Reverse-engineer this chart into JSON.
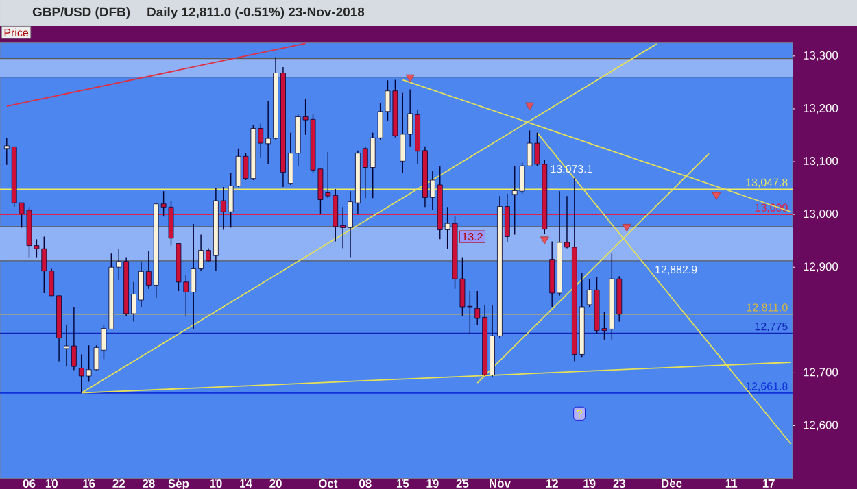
{
  "chart_data": {
    "type": "candlestick",
    "title": "GBP/USD (DFB)",
    "subtitle": "Daily   12,811.0 (-0.51%)   23-Nov-2018",
    "categories": [
      null,
      null,
      null,
      "06",
      null,
      null,
      "10",
      null,
      null,
      null,
      null,
      "16",
      null,
      null,
      null,
      "22",
      null,
      null,
      null,
      "28",
      null,
      null,
      null,
      "Sep",
      null,
      null,
      null,
      null,
      "10",
      null,
      null,
      null,
      "14",
      null,
      null,
      null,
      "20",
      null,
      null,
      null,
      null,
      null,
      null,
      "Oct",
      null,
      null,
      null,
      null,
      "08",
      null,
      null,
      null,
      null,
      "15",
      null,
      null,
      null,
      "19",
      null,
      null,
      null,
      "25",
      null,
      null,
      null,
      null,
      "Nov",
      null,
      null,
      null,
      null,
      null,
      null,
      "12",
      null,
      null,
      null,
      null,
      "19",
      null,
      null,
      null,
      "23",
      null,
      null,
      null,
      null,
      null,
      null,
      "Dec",
      null,
      null,
      null,
      null,
      null,
      null,
      null,
      "11",
      null,
      null,
      null,
      null,
      "17",
      null,
      null,
      null
    ],
    "colors": [
      "#fbf3d8",
      "#cc1038",
      "#cc1038",
      "#cc1038",
      "#cc1038",
      "#cc1038",
      "#cc1038",
      "#cc1038",
      "#fbf3d8",
      "#cc1038",
      "#cc1038",
      "#fbf3d8",
      "#fbf3d8",
      "#fbf3d8",
      "#fbf3d8",
      "#fbf3d8",
      "#cc1038",
      "#fbf3d8",
      "#fbf3d8",
      "#cc1038",
      "#fbf3d8",
      "#cc1038",
      "#cc1038",
      "#cc1038",
      "#cc1038",
      "#fbf3d8",
      "#fbf3d8",
      "#cc1038",
      "#fbf3d8",
      "#cc1038",
      "#fbf3d8",
      "#fbf3d8",
      "#cc1038",
      "#fbf3d8",
      "#cc1038",
      "#fbf3d8",
      "#fbf3d8",
      "#cc1038",
      "#fbf3d8",
      "#fbf3d8",
      "#cc1038",
      "#cc1038",
      "#cc1038",
      "#cc1038",
      "#cc1038",
      "#cc1038",
      "#fbf3d8",
      "#fbf3d8",
      "#cc1038",
      "#fbf3d8",
      "#fbf3d8",
      "#fbf3d8",
      "#cc1038",
      "#fbf3d8",
      "#fbf3d8",
      "#cc1038",
      "#cc1038",
      "#fbf3d8",
      "#cc1038",
      "#fbf3d8",
      "#cc1038",
      "#cc1038",
      "#cc1038",
      "#cc1038",
      "#cc1038",
      "#fbf3d8",
      "#fbf3d8",
      "#cc1038",
      "#fbf3d8",
      "#fbf3d8",
      "#fbf3d8",
      "#cc1038",
      "#cc1038",
      "#cc1038",
      "#fbf3d8",
      "#cc1038",
      "#cc1038",
      "#fbf3d8",
      "#fbf3d8",
      "#cc1038",
      "#cc1038",
      "#fbf3d8",
      "#cc1038",
      null,
      null,
      null,
      null,
      null,
      null,
      null,
      null,
      null,
      null,
      null,
      null,
      null,
      null,
      null,
      null,
      null,
      null,
      null,
      null,
      null,
      null,
      null
    ],
    "ohlc": [
      [
        13125,
        13144,
        13094,
        13130
      ],
      [
        13128,
        13129,
        13015,
        13022
      ],
      [
        13022,
        13022,
        12975,
        13001
      ],
      [
        13008,
        13014,
        12919,
        12941
      ],
      [
        12941,
        12953,
        12919,
        12935
      ],
      [
        12935,
        12958,
        12851,
        12893
      ],
      [
        12893,
        12897,
        12846,
        12846
      ],
      [
        12846,
        12846,
        12722,
        12766
      ],
      [
        12746,
        12791,
        12713,
        12751
      ],
      [
        12751,
        12825,
        12705,
        12712
      ],
      [
        12709,
        12735,
        12662,
        12694
      ],
      [
        12694,
        12752,
        12683,
        12706
      ],
      [
        12706,
        12752,
        12705,
        12748
      ],
      [
        12743,
        12791,
        12726,
        12784
      ],
      [
        12783,
        12926,
        12783,
        12900
      ],
      [
        12900,
        12935,
        12876,
        12911
      ],
      [
        12911,
        12919,
        12808,
        12812
      ],
      [
        12812,
        12872,
        12797,
        12849
      ],
      [
        12838,
        12911,
        12825,
        12892
      ],
      [
        12892,
        12930,
        12859,
        12866
      ],
      [
        12866,
        13022,
        12842,
        13020
      ],
      [
        13020,
        13044,
        12996,
        13014
      ],
      [
        13014,
        13026,
        12941,
        12955
      ],
      [
        12945,
        12945,
        12855,
        12872
      ],
      [
        12872,
        12885,
        12808,
        12853
      ],
      [
        12853,
        12982,
        12783,
        12897
      ],
      [
        12897,
        12962,
        12893,
        12932
      ],
      [
        12932,
        12936,
        12911,
        12912
      ],
      [
        12922,
        13050,
        12893,
        13026
      ],
      [
        13026,
        13052,
        12971,
        13005
      ],
      [
        13005,
        13078,
        12975,
        13054
      ],
      [
        13054,
        13125,
        13052,
        13110
      ],
      [
        13110,
        13116,
        13065,
        13068
      ],
      [
        13068,
        13170,
        13065,
        13163
      ],
      [
        13163,
        13172,
        13108,
        13135
      ],
      [
        13134,
        13215,
        13095,
        13144
      ],
      [
        13144,
        13298,
        13142,
        13268
      ],
      [
        13268,
        13279,
        13052,
        13080
      ],
      [
        13059,
        13155,
        13056,
        13116
      ],
      [
        13116,
        13189,
        13091,
        13185
      ],
      [
        13185,
        13218,
        13151,
        13179
      ],
      [
        13180,
        13189,
        13078,
        13084
      ],
      [
        13086,
        13086,
        13001,
        13028
      ],
      [
        13041,
        13118,
        13031,
        13035
      ],
      [
        13036,
        13048,
        12949,
        12977
      ],
      [
        12979,
        13014,
        12936,
        12975
      ],
      [
        12975,
        13044,
        12919,
        13024
      ],
      [
        13022,
        13121,
        13001,
        13116
      ],
      [
        13125,
        13129,
        13031,
        13089
      ],
      [
        13089,
        13155,
        13031,
        13145
      ],
      [
        13145,
        13211,
        13142,
        13195
      ],
      [
        13195,
        13254,
        13177,
        13234
      ],
      [
        13234,
        13255,
        13146,
        13149
      ],
      [
        13101,
        13230,
        13078,
        13152
      ],
      [
        13152,
        13237,
        13129,
        13191
      ],
      [
        13189,
        13198,
        13095,
        13120
      ],
      [
        13121,
        13129,
        13014,
        13032
      ],
      [
        13032,
        13082,
        13009,
        13065
      ],
      [
        13056,
        13091,
        12953,
        12971
      ],
      [
        12971,
        13014,
        12935,
        12983
      ],
      [
        12983,
        12996,
        12859,
        12878
      ],
      [
        12878,
        12919,
        12808,
        12825
      ],
      [
        12826,
        12855,
        12774,
        12825
      ],
      [
        12822,
        12855,
        12791,
        12803
      ],
      [
        12805,
        12829,
        12694,
        12696
      ],
      [
        12696,
        12829,
        12692,
        12770
      ],
      [
        12770,
        13035,
        12766,
        13015
      ],
      [
        13015,
        13039,
        12947,
        12958
      ],
      [
        13038,
        13091,
        12962,
        13045
      ],
      [
        13044,
        13098,
        13039,
        13092
      ],
      [
        13092,
        13159,
        13091,
        13135
      ],
      [
        13135,
        13155,
        13091,
        13095
      ],
      [
        13095,
        13104,
        12964,
        12972
      ],
      [
        12915,
        12949,
        12825,
        12851
      ],
      [
        12851,
        13044,
        12846,
        12947
      ],
      [
        12947,
        13035,
        12936,
        12938
      ],
      [
        12938,
        13069,
        12722,
        12735
      ],
      [
        12735,
        12889,
        12730,
        12825
      ],
      [
        12829,
        12878,
        12825,
        12857
      ],
      [
        12857,
        12881,
        12774,
        12780
      ],
      [
        12784,
        12816,
        12763,
        12780
      ],
      [
        12783,
        12926,
        12763,
        12878
      ],
      [
        12878,
        12883,
        12797,
        12811
      ],
      null,
      null,
      null,
      null,
      null,
      null,
      null,
      null,
      null,
      null,
      null,
      null,
      null,
      null,
      null,
      null,
      null,
      null,
      null,
      null,
      null,
      null,
      null
    ],
    "series": [
      {
        "type": "line",
        "color": "#e6e05a",
        "values": [
          null,
          null,
          null,
          null,
          null,
          null,
          null,
          null,
          null,
          null,
          12662,
          null,
          null,
          null,
          null,
          null,
          null,
          null,
          null,
          null,
          null,
          null,
          null,
          null,
          null,
          null,
          null,
          null,
          null,
          null,
          null,
          null,
          null,
          null,
          null,
          null,
          null,
          null,
          null,
          null,
          null,
          null,
          null,
          null,
          null,
          null,
          null,
          null,
          null,
          null,
          null,
          null,
          null,
          null,
          null,
          null,
          null,
          null,
          null,
          null,
          null,
          null,
          null,
          null,
          null,
          null,
          null,
          null,
          null,
          null,
          null,
          null,
          null,
          null,
          null,
          null,
          null,
          null,
          null,
          null,
          null,
          null,
          null,
          null,
          null,
          null,
          null,
          null,
          null,
          null,
          null,
          null,
          null,
          null,
          null,
          null,
          null,
          null,
          null,
          null,
          null,
          null,
          null,
          null,
          null,
          12720
        ]
      },
      {
        "type": "line",
        "color": "#e6e05a",
        "values": [
          null,
          null,
          null,
          null,
          null,
          null,
          null,
          null,
          null,
          null,
          12662,
          null,
          null,
          null,
          null,
          null,
          null,
          null,
          null,
          null,
          null,
          null,
          null,
          null,
          null,
          null,
          null,
          null,
          null,
          null,
          null,
          null,
          null,
          null,
          null,
          null,
          null,
          null,
          null,
          null,
          null,
          null,
          null,
          null,
          null,
          null,
          null,
          null,
          null,
          null,
          null,
          null,
          null,
          null,
          null,
          null,
          null,
          null,
          null,
          null,
          null,
          null,
          null,
          null,
          null,
          null,
          null,
          null,
          null,
          null,
          null,
          null,
          null,
          null,
          null,
          null,
          null,
          null,
          null,
          null,
          null,
          null,
          null,
          null,
          null,
          null,
          null,
          13323,
          null,
          null,
          null,
          null,
          null,
          null,
          null,
          null,
          null,
          null,
          null,
          null,
          null,
          null,
          null,
          null,
          null,
          null
        ]
      },
      {
        "type": "line",
        "color": "#e6e05a",
        "values": [
          null,
          null,
          null,
          null,
          null,
          null,
          null,
          null,
          null,
          null,
          null,
          null,
          null,
          null,
          null,
          null,
          null,
          null,
          null,
          null,
          null,
          null,
          null,
          null,
          null,
          null,
          null,
          null,
          null,
          null,
          null,
          null,
          null,
          null,
          null,
          null,
          null,
          null,
          null,
          null,
          null,
          null,
          null,
          null,
          null,
          null,
          null,
          null,
          null,
          null,
          null,
          null,
          null,
          13255,
          null,
          null,
          null,
          null,
          null,
          null,
          null,
          null,
          null,
          null,
          null,
          null,
          null,
          null,
          null,
          null,
          null,
          null,
          null,
          null,
          null,
          null,
          null,
          null,
          null,
          null,
          null,
          null,
          null,
          null,
          null,
          null,
          null,
          null,
          null,
          null,
          null,
          null,
          null,
          null,
          null,
          null,
          null,
          null,
          null,
          null,
          null,
          null,
          null,
          null,
          null,
          13005
        ]
      },
      {
        "type": "line",
        "color": "#e6e05a",
        "values": [
          null,
          null,
          null,
          null,
          null,
          null,
          null,
          null,
          null,
          null,
          null,
          null,
          null,
          null,
          null,
          null,
          null,
          null,
          null,
          null,
          null,
          null,
          null,
          null,
          null,
          null,
          null,
          null,
          null,
          null,
          null,
          null,
          null,
          null,
          null,
          null,
          null,
          null,
          null,
          null,
          null,
          null,
          null,
          null,
          null,
          null,
          null,
          null,
          null,
          null,
          null,
          null,
          null,
          null,
          null,
          null,
          null,
          null,
          null,
          null,
          null,
          null,
          null,
          null,
          null,
          null,
          null,
          null,
          null,
          null,
          null,
          13155,
          null,
          null,
          null,
          null,
          null,
          null,
          null,
          null,
          null,
          null,
          null,
          null,
          null,
          null,
          null,
          null,
          null,
          null,
          null,
          null,
          null,
          null,
          null,
          null,
          null,
          null,
          null,
          null,
          null,
          null,
          null,
          null,
          null,
          12565
        ]
      },
      {
        "type": "line",
        "color": "#e6e05a",
        "values": [
          null,
          null,
          null,
          null,
          null,
          null,
          null,
          null,
          null,
          null,
          null,
          null,
          null,
          null,
          null,
          null,
          null,
          null,
          null,
          null,
          null,
          null,
          null,
          null,
          null,
          null,
          null,
          null,
          null,
          null,
          null,
          null,
          null,
          null,
          null,
          null,
          null,
          null,
          null,
          null,
          null,
          null,
          null,
          null,
          null,
          null,
          null,
          null,
          null,
          null,
          null,
          null,
          null,
          null,
          null,
          null,
          null,
          null,
          null,
          null,
          null,
          null,
          null,
          12681,
          null,
          null,
          null,
          null,
          null,
          null,
          null,
          null,
          null,
          null,
          null,
          null,
          null,
          null,
          null,
          null,
          null,
          null,
          null,
          null,
          null,
          null,
          null,
          null,
          null,
          null,
          null,
          null,
          null,
          null,
          13115,
          null,
          null,
          null,
          null,
          null,
          null,
          null,
          null,
          null,
          null,
          null
        ]
      },
      {
        "type": "line",
        "color": "#e03040",
        "values": [
          13205,
          null,
          null,
          null,
          null,
          null,
          null,
          null,
          null,
          null,
          null,
          null,
          null,
          null,
          null,
          null,
          null,
          null,
          null,
          null,
          null,
          null,
          null,
          null,
          null,
          null,
          null,
          null,
          null,
          null,
          null,
          null,
          null,
          null,
          null,
          null,
          null,
          null,
          null,
          null,
          13324,
          null,
          null,
          null,
          null,
          null,
          null,
          null,
          null,
          null,
          null,
          null,
          null,
          null,
          null,
          null,
          null,
          null,
          null,
          null,
          null,
          null,
          null,
          null,
          null,
          null,
          null,
          null,
          null,
          null,
          null,
          null,
          null,
          null,
          null,
          null,
          null,
          null,
          null,
          null,
          null,
          null,
          null,
          null,
          null,
          null,
          null,
          null,
          null,
          null,
          null,
          null,
          null,
          null,
          null,
          null,
          null,
          null,
          null,
          null,
          null,
          null,
          null,
          null,
          null,
          null
        ]
      },
      {
        "type": "scatter",
        "color": "#e8505a",
        "marker": "triangle",
        "values": [
          null,
          null,
          null,
          null,
          null,
          null,
          null,
          null,
          null,
          null,
          null,
          null,
          null,
          null,
          null,
          null,
          null,
          null,
          null,
          null,
          null,
          null,
          null,
          null,
          null,
          null,
          null,
          null,
          null,
          null,
          null,
          null,
          null,
          null,
          null,
          null,
          null,
          null,
          null,
          null,
          null,
          null,
          null,
          null,
          null,
          null,
          null,
          null,
          null,
          null,
          null,
          null,
          null,
          null,
          13260,
          null,
          null,
          null,
          null,
          null,
          null,
          null,
          null,
          null,
          null,
          null,
          null,
          null,
          null,
          null,
          13207,
          null,
          12953,
          null,
          null,
          null,
          null,
          null,
          null,
          null,
          null,
          null,
          null,
          12977,
          null,
          null,
          null,
          null,
          null,
          null,
          null,
          null,
          null,
          null,
          null,
          13037,
          null,
          null,
          null,
          null,
          null,
          null,
          null,
          null,
          null,
          null
        ]
      }
    ],
    "ylim": [
      12500,
      13325
    ],
    "yticks": [
      {
        "value": 12600,
        "label": "12,600"
      },
      {
        "value": 12700,
        "label": "12,700"
      },
      {
        "value": 12900,
        "label": "12,900"
      },
      {
        "value": 13000,
        "label": "13,000"
      },
      {
        "value": 13100,
        "label": "13,100"
      },
      {
        "value": 13200,
        "label": "13,200"
      },
      {
        "value": 13300,
        "label": "13,300"
      }
    ],
    "bands": [
      {
        "axis": "y",
        "from": 13260,
        "to": 13295,
        "color": "#8fb2f6"
      },
      {
        "axis": "y",
        "from": 12912,
        "to": 12977,
        "color": "#8fb2f6"
      }
    ],
    "ref_lines": [
      {
        "axis": "y",
        "value": 13047.8,
        "label": "13,047.8",
        "color": "#f0ec60"
      },
      {
        "axis": "y",
        "value": 13000,
        "label": "13,000",
        "color": "#e02040"
      },
      {
        "axis": "y",
        "value": 12811,
        "label": "12,811.0",
        "color": "#d8b840"
      },
      {
        "axis": "y",
        "value": 12775,
        "label": "12,775",
        "color": "#1224b8"
      },
      {
        "axis": "y",
        "value": 12661.8,
        "label": "12,661.8",
        "color": "#1030d8"
      }
    ],
    "annotations": [
      "Price",
      "13.2",
      "13,073.1",
      "12,882.9",
      "?"
    ],
    "grid": false
  }
}
